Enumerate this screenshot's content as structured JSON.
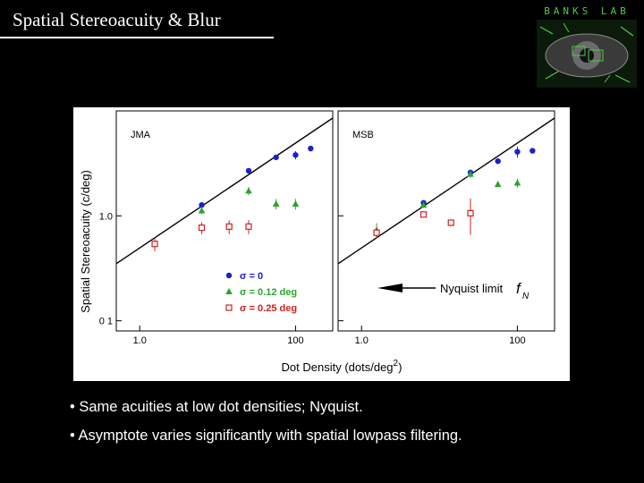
{
  "slide": {
    "title": "Spatial Stereoacuity & Blur",
    "logo_text": "BANKS LAB",
    "bullets": [
      "• Same acuities at low dot densities; Nyquist.",
      "• Asymptote varies significantly with spatial lowpass filtering."
    ]
  },
  "colors": {
    "sigma0": "#1a22c8",
    "sigma012": "#2aa52a",
    "sigma025": "#cc2222",
    "logo": "#4ecb4e"
  },
  "chart_data": {
    "type": "scatter",
    "xlabel": "Dot Density (dots/deg",
    "xlabel_sup": "2",
    "xlabel_close": ")",
    "ylabel": "Spatial Stereoacuity (c/deg)",
    "x_scale": "log",
    "y_scale": "log",
    "xlim": [
      0.5,
      300
    ],
    "ylim": [
      0.08,
      10
    ],
    "x_ticks": [
      1,
      100
    ],
    "x_tick_labels": [
      "1.0",
      "100"
    ],
    "y_ticks": [
      0.1,
      1
    ],
    "y_tick_labels": [
      "0 1",
      "1.0"
    ],
    "legend": {
      "position": "lower-right of left panel",
      "entries": [
        {
          "label": "σ = 0",
          "series": 0
        },
        {
          "label": "σ = 0.12 deg",
          "series": 1
        },
        {
          "label": "σ = 0.25 deg",
          "series": 2
        }
      ]
    },
    "annotation": {
      "text": "Nyquist limit",
      "symbol": "f",
      "subscript": "N"
    },
    "nyquist_line": [
      [
        0.5,
        0.35
      ],
      [
        300,
        8.55
      ]
    ],
    "panels": [
      {
        "name": "JMA",
        "series": [
          {
            "marker": "circle",
            "points": [
              [
                6.25,
                1.27
              ],
              [
                25,
                2.69
              ],
              [
                56.25,
                3.61
              ],
              [
                100,
                3.8
              ],
              [
                156.25,
                4.38
              ]
            ],
            "err": [
              0.06,
              0.1,
              0.12,
              0.35,
              0.1
            ]
          },
          {
            "marker": "triangle",
            "points": [
              [
                6.25,
                1.12
              ],
              [
                25,
                1.73
              ],
              [
                56.25,
                1.3
              ],
              [
                100,
                1.3
              ]
            ],
            "err": [
              0.08,
              0.15,
              0.15,
              0.15
            ]
          },
          {
            "marker": "square",
            "points": [
              [
                1.56,
                0.54
              ],
              [
                6.25,
                0.77
              ],
              [
                14.06,
                0.79
              ],
              [
                25,
                0.79
              ]
            ],
            "err": [
              0.08,
              0.1,
              0.12,
              0.12
            ]
          }
        ]
      },
      {
        "name": "MSB",
        "series": [
          {
            "marker": "circle",
            "points": [
              [
                6.25,
                1.33
              ],
              [
                25,
                2.59
              ],
              [
                56.25,
                3.32
              ],
              [
                100,
                4.08
              ],
              [
                156.25,
                4.17
              ]
            ],
            "err": [
              0.06,
              0.12,
              0.12,
              0.5,
              0.1
            ]
          },
          {
            "marker": "triangle",
            "points": [
              [
                1.56,
                0.73
              ],
              [
                6.25,
                1.27
              ],
              [
                25,
                2.5
              ],
              [
                56.25,
                2.0
              ],
              [
                100,
                2.06
              ]
            ],
            "err": [
              0.12,
              0.08,
              0.2,
              0.1,
              0.2
            ]
          },
          {
            "marker": "square",
            "points": [
              [
                1.56,
                0.69
              ],
              [
                6.25,
                1.03
              ],
              [
                14.06,
                0.86
              ],
              [
                25,
                1.06
              ]
            ],
            "err": [
              0.08,
              0.06,
              0.06,
              0.4
            ]
          }
        ]
      }
    ]
  }
}
